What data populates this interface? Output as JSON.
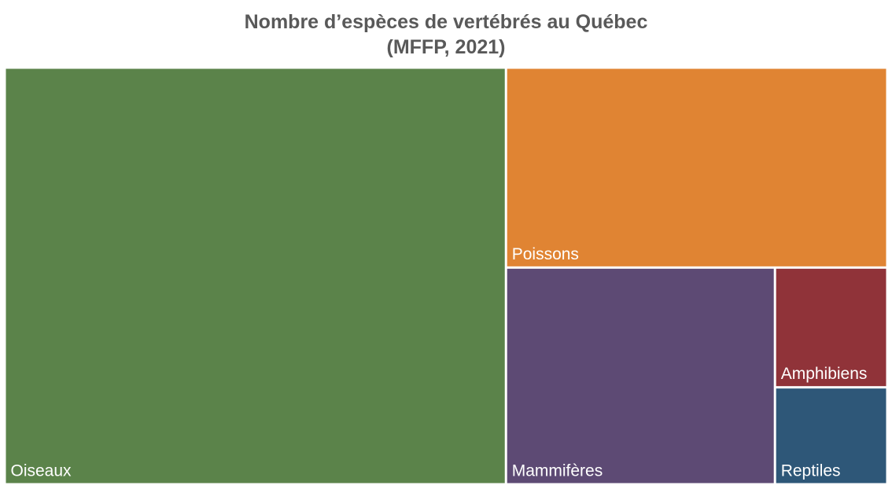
{
  "chart_data": {
    "type": "treemap",
    "title": "Nombre d’espèces de vertébrés au Québec",
    "subtitle": "(MFFP, 2021)",
    "items": [
      {
        "name": "Oiseaux",
        "value": 326,
        "color": "#5b834a"
      },
      {
        "name": "Poissons",
        "value": 119,
        "color": "#e08433"
      },
      {
        "name": "Mammifères",
        "value": 91,
        "color": "#5d4a74"
      },
      {
        "name": "Amphibiens",
        "value": 21,
        "color": "#903339"
      },
      {
        "name": "Reptiles",
        "value": 17,
        "color": "#2e5778"
      }
    ]
  }
}
